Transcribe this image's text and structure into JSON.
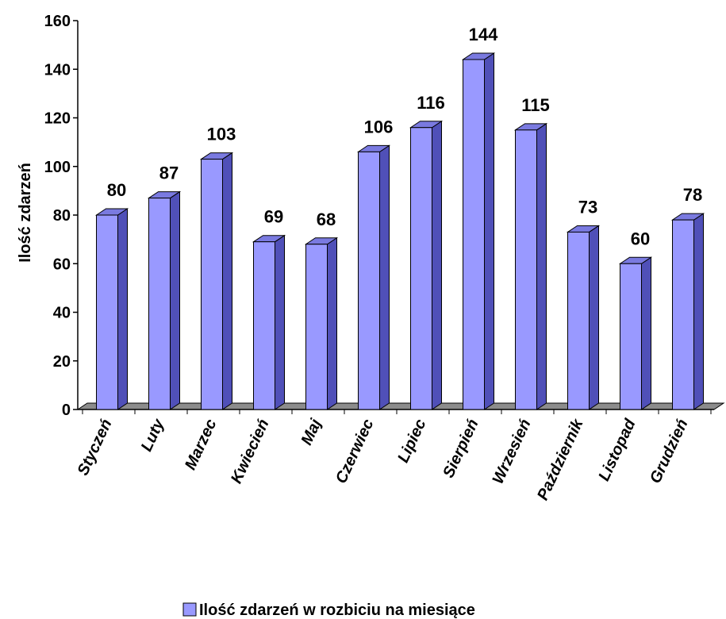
{
  "chart_data": {
    "type": "bar",
    "categories": [
      "Styczeń",
      "Luty",
      "Marzec",
      "Kwiecień",
      "Maj",
      "Czerwiec",
      "Lipiec",
      "Sierpień",
      "Wrzesień",
      "Październik",
      "Listopad",
      "Grudzień"
    ],
    "series": [
      {
        "name": "Ilość zdarzeń w rozbiciu na miesiące",
        "values": [
          80,
          87,
          103,
          69,
          68,
          106,
          116,
          144,
          115,
          73,
          60,
          78
        ]
      }
    ],
    "ylabel": "Ilość zdarzeń",
    "ylim": [
      0,
      160
    ],
    "yticks": [
      0,
      20,
      40,
      60,
      80,
      100,
      120,
      140,
      160
    ],
    "data_labels": true,
    "grid": false,
    "legend_position": "bottom",
    "colors": {
      "bar_front": "#9999ff",
      "bar_side": "#5050b8",
      "bar_top": "#7a7ae0",
      "floor": "#8c8c8c",
      "axis": "#000000"
    }
  }
}
